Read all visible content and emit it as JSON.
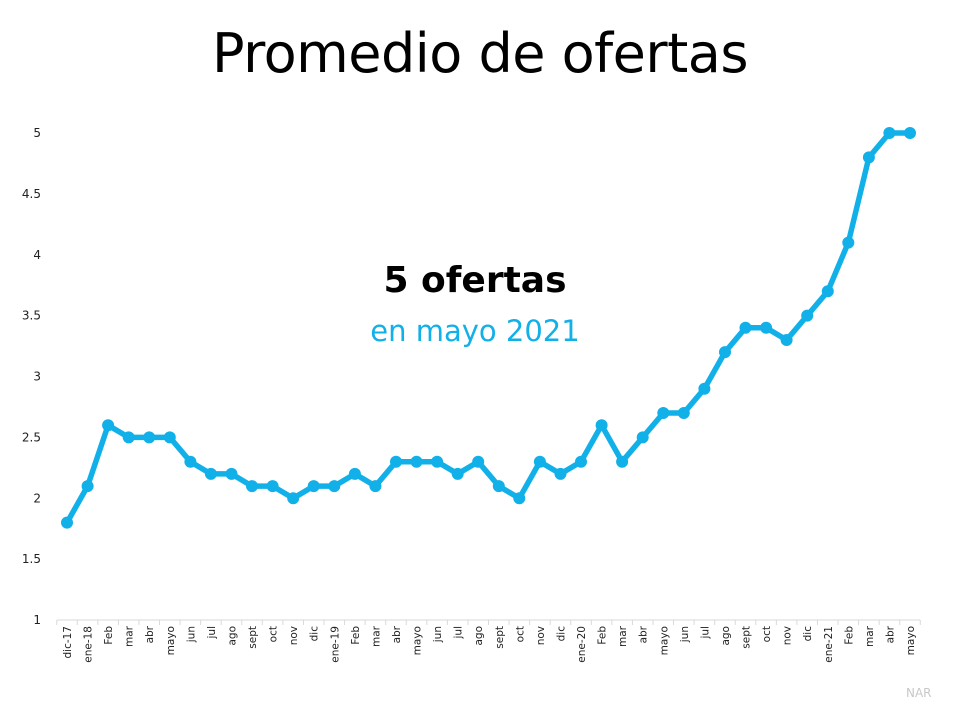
{
  "slide": {
    "title": "Promedio de ofertas",
    "annotation_main": "5 ofertas",
    "annotation_sub": "en mayo 2021",
    "source": "NAR"
  },
  "colors": {
    "line": "#12b0e8",
    "annotation_sub": "#12b0e8",
    "axis": "#d9d9d9",
    "source": "#c8c8c8"
  },
  "chart_data": {
    "type": "line",
    "title": "Promedio de ofertas",
    "xlabel": "",
    "ylabel": "",
    "ylim": [
      1,
      5
    ],
    "yticks": [
      1,
      1.5,
      2,
      2.5,
      3,
      3.5,
      4,
      4.5,
      5
    ],
    "ytick_labels": [
      "1",
      "1.5",
      "2",
      "2.5",
      "3",
      "3.5",
      "4",
      "4.5",
      "5"
    ],
    "grid": false,
    "legend": "none",
    "categories": [
      "dic-17",
      "ene-18",
      "Feb",
      "mar",
      "abr",
      "mayo",
      "jun",
      "jul",
      "ago",
      "sept",
      "oct",
      "nov",
      "dic",
      "ene-19",
      "Feb",
      "mar",
      "abr",
      "mayo",
      "jun",
      "jul",
      "ago",
      "sept",
      "oct",
      "nov",
      "dic",
      "ene-20",
      "Feb",
      "mar",
      "abr",
      "mayo",
      "jun",
      "jul",
      "ago",
      "sept",
      "oct",
      "nov",
      "dic",
      "ene-21",
      "Feb",
      "mar",
      "abr",
      "mayo"
    ],
    "series": [
      {
        "name": "Promedio de ofertas",
        "values": [
          1.8,
          2.1,
          2.6,
          2.5,
          2.5,
          2.5,
          2.3,
          2.2,
          2.2,
          2.1,
          2.1,
          2.0,
          2.1,
          2.1,
          2.2,
          2.1,
          2.3,
          2.3,
          2.3,
          2.2,
          2.3,
          2.1,
          2.0,
          2.3,
          2.2,
          2.3,
          2.6,
          2.3,
          2.5,
          2.7,
          2.7,
          2.9,
          3.2,
          3.4,
          3.4,
          3.3,
          3.5,
          3.7,
          4.1,
          4.8,
          5.0,
          5.0
        ]
      }
    ],
    "annotations": [
      "5 ofertas",
      "en mayo 2021"
    ]
  }
}
